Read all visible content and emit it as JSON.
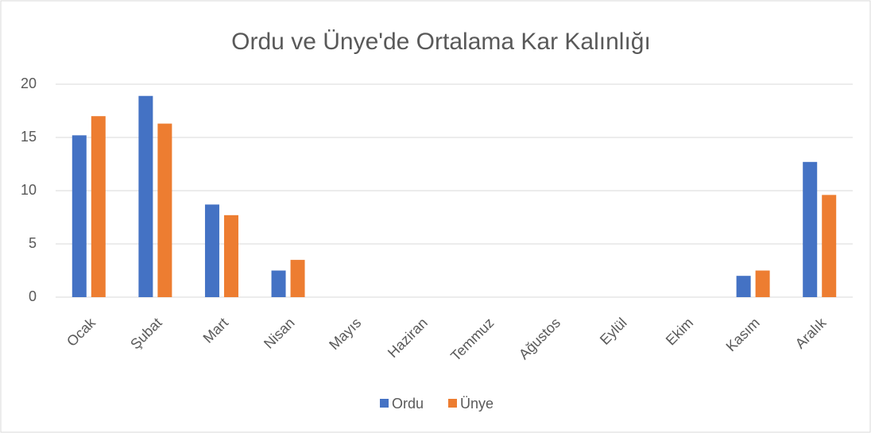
{
  "chart_data": {
    "type": "bar",
    "title": "Ordu ve Ünye'de Ortalama Kar Kalınlığı",
    "categories": [
      "Ocak",
      "Şubat",
      "Mart",
      "Nisan",
      "Mayıs",
      "Haziran",
      "Temmuz",
      "Ağustos",
      "Eylül",
      "Ekim",
      "Kasım",
      "Aralık"
    ],
    "series": [
      {
        "name": "Ordu",
        "color": "#4472c4",
        "values": [
          15.2,
          18.9,
          8.7,
          2.5,
          0,
          0,
          0,
          0,
          0,
          0,
          2.0,
          12.7
        ]
      },
      {
        "name": "Ünye",
        "color": "#ed7d31",
        "values": [
          17.0,
          16.3,
          7.7,
          3.5,
          0,
          0,
          0,
          0,
          0,
          0,
          2.5,
          9.6
        ]
      }
    ],
    "ylim": [
      0,
      20
    ],
    "yticks": [
      0,
      5,
      10,
      15,
      20
    ],
    "grid": true,
    "legend": "bottom"
  }
}
